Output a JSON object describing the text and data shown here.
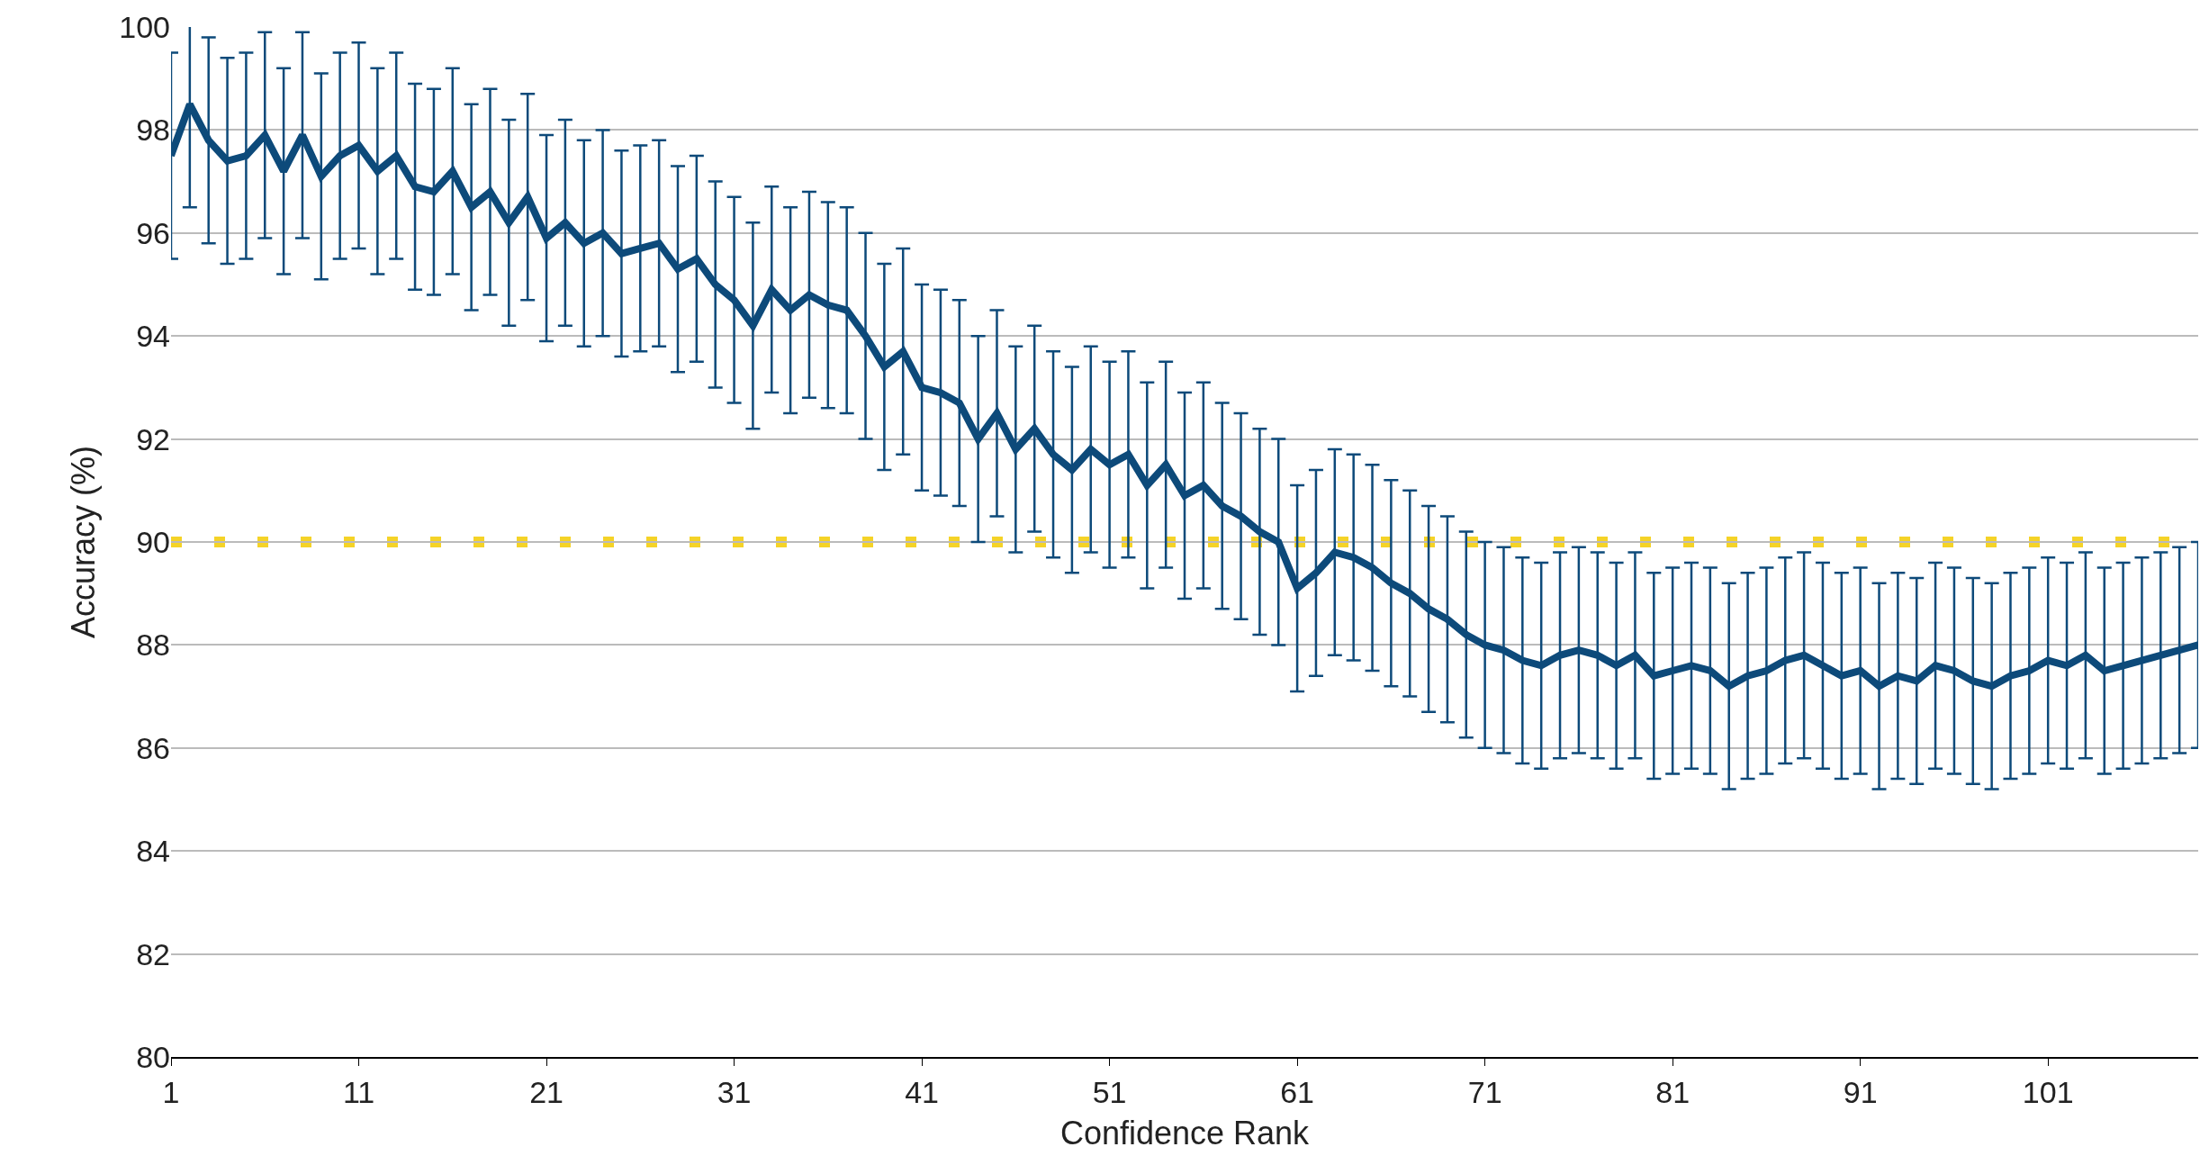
{
  "chart_data": {
    "type": "line",
    "xlabel": "Confidence Rank",
    "ylabel": "Accuracy (%)",
    "x": [
      1,
      2,
      3,
      4,
      5,
      6,
      7,
      8,
      9,
      10,
      11,
      12,
      13,
      14,
      15,
      16,
      17,
      18,
      19,
      20,
      21,
      22,
      23,
      24,
      25,
      26,
      27,
      28,
      29,
      30,
      31,
      32,
      33,
      34,
      35,
      36,
      37,
      38,
      39,
      40,
      41,
      42,
      43,
      44,
      45,
      46,
      47,
      48,
      49,
      50,
      51,
      52,
      53,
      54,
      55,
      56,
      57,
      58,
      59,
      60,
      61,
      62,
      63,
      64,
      65,
      66,
      67,
      68,
      69,
      70,
      71,
      72,
      73,
      74,
      75,
      76,
      77,
      78,
      79,
      80,
      81,
      82,
      83,
      84,
      85,
      86,
      87,
      88,
      89,
      90,
      91,
      92,
      93,
      94,
      95,
      96,
      97,
      98,
      99,
      100,
      101,
      102,
      103,
      104,
      105,
      106,
      107,
      108,
      109
    ],
    "series": [
      {
        "color": "#0d4a7a",
        "values": [
          97.5,
          98.5,
          97.8,
          97.4,
          97.5,
          97.9,
          97.2,
          97.9,
          97.1,
          97.5,
          97.7,
          97.2,
          97.5,
          96.9,
          96.8,
          97.2,
          96.5,
          96.8,
          96.2,
          96.7,
          95.9,
          96.2,
          95.8,
          96.0,
          95.6,
          95.7,
          95.8,
          95.3,
          95.5,
          95.0,
          94.7,
          94.2,
          94.9,
          94.5,
          94.8,
          94.6,
          94.5,
          94.0,
          93.4,
          93.7,
          93.0,
          92.9,
          92.7,
          92.0,
          92.5,
          91.8,
          92.2,
          91.7,
          91.4,
          91.8,
          91.5,
          91.7,
          91.1,
          91.5,
          90.9,
          91.1,
          90.7,
          90.5,
          90.2,
          90.0,
          89.1,
          89.4,
          89.8,
          89.7,
          89.5,
          89.2,
          89.0,
          88.7,
          88.5,
          88.2,
          88.0,
          87.9,
          87.7,
          87.6,
          87.8,
          87.9,
          87.8,
          87.6,
          87.8,
          87.4,
          87.5,
          87.6,
          87.5,
          87.2,
          87.4,
          87.5,
          87.7,
          87.8,
          87.6,
          87.4,
          87.5,
          87.2,
          87.4,
          87.3,
          87.6,
          87.5,
          87.3,
          87.2,
          87.4,
          87.5,
          87.7,
          87.6,
          87.8,
          87.5,
          87.6,
          87.7,
          87.8,
          87.9,
          88.0
        ],
        "errors": [
          2,
          2,
          2,
          2,
          2,
          2,
          2,
          2,
          2,
          2,
          2,
          2,
          2,
          2,
          2,
          2,
          2,
          2,
          2,
          2,
          2,
          2,
          2,
          2,
          2,
          2,
          2,
          2,
          2,
          2,
          2,
          2,
          2,
          2,
          2,
          2,
          2,
          2,
          2,
          2,
          2,
          2,
          2,
          2,
          2,
          2,
          2,
          2,
          2,
          2,
          2,
          2,
          2,
          2,
          2,
          2,
          2,
          2,
          2,
          2,
          2,
          2,
          2,
          2,
          2,
          2,
          2,
          2,
          2,
          2,
          2,
          2,
          2,
          2,
          2,
          2,
          2,
          2,
          2,
          2,
          2,
          2,
          2,
          2,
          2,
          2,
          2,
          2,
          2,
          2,
          2,
          2,
          2,
          2,
          2,
          2,
          2,
          2,
          2,
          2,
          2,
          2,
          2,
          2,
          2,
          2,
          2,
          2,
          2
        ]
      }
    ],
    "ref_lines": [
      {
        "axis": "y",
        "value": 90,
        "color": "#f5d327",
        "line_style": "dotted"
      }
    ],
    "xlim": [
      1,
      109
    ],
    "xticks": [
      1,
      11,
      21,
      31,
      41,
      51,
      61,
      71,
      81,
      91,
      101
    ],
    "ylim": [
      80,
      100
    ],
    "yticks": [
      80,
      82,
      84,
      86,
      88,
      90,
      92,
      94,
      96,
      98,
      100
    ],
    "grid": "y",
    "marker": "none",
    "line_style": "solid"
  }
}
